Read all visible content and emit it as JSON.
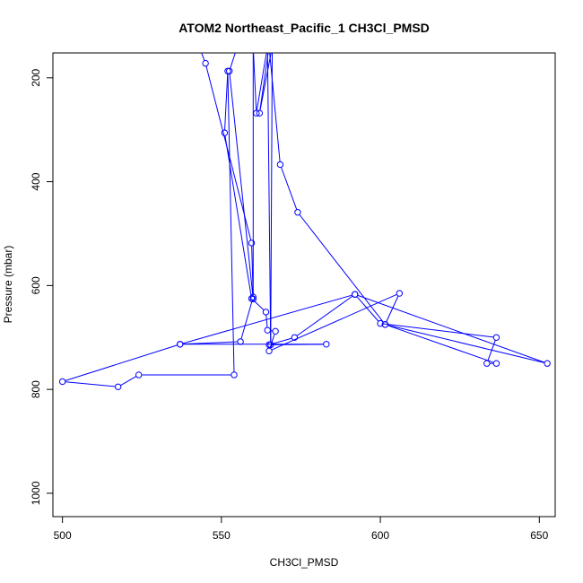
{
  "chart_data": {
    "type": "line",
    "title": "ATOM2 Northeast_Pacific_1 CH3Cl_PMSD",
    "xlabel": "CH3Cl_PMSD",
    "ylabel": "Pressure (mbar)",
    "xlim": [
      497,
      655
    ],
    "ylim": [
      1045,
      152
    ],
    "y_reversed": true,
    "x_ticks": [
      500,
      550,
      600,
      650
    ],
    "y_ticks": [
      200,
      400,
      600,
      800,
      1000
    ],
    "grid": false,
    "legend": "none",
    "series_color": "#0000ff",
    "marker": "open-circle",
    "series": [
      {
        "x": [
          543,
          545,
          559.5,
          560,
          556,
          537,
          583,
          565,
          573,
          592,
          600,
          636.5,
          633.5,
          636.5,
          601.5,
          606,
          565,
          567,
          564.5,
          564,
          559.5,
          551,
          552,
          554,
          524,
          517.5,
          500,
          537,
          592,
          652.5,
          601.5,
          574,
          568.5,
          565,
          562,
          566,
          565.5,
          564.5,
          561,
          560,
          560,
          552.5,
          555
        ],
        "y": [
          140,
          172,
          518,
          622,
          708,
          713,
          713,
          714,
          700,
          617,
          673,
          700,
          750,
          750,
          675,
          615,
          726,
          688,
          686,
          651,
          625,
          306,
          187,
          772,
          772,
          795,
          785,
          713,
          617,
          750,
          675,
          459,
          367,
          140,
          268,
          140,
          714,
          140,
          268,
          140,
          626,
          187,
          140
        ]
      }
    ]
  }
}
